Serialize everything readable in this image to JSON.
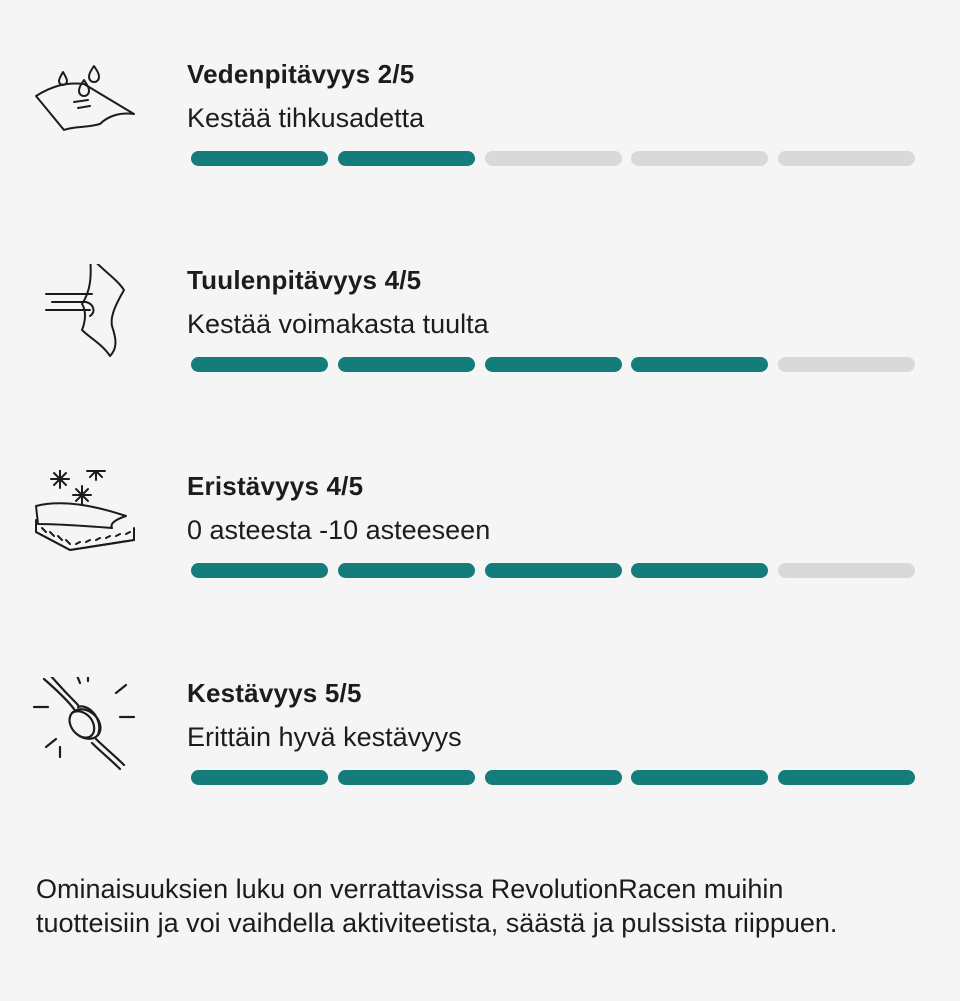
{
  "features": [
    {
      "id": "waterproof",
      "icon": "water-drops-fabric-icon",
      "title": "Vedenpitävyys 2/5",
      "subtitle": "Kestää tihkusadetta",
      "rating": 2,
      "max_rating": 5
    },
    {
      "id": "windproof",
      "icon": "wind-fabric-icon",
      "title": "Tuulenpitävyys 4/5",
      "subtitle": "Kestää voimakasta tuulta",
      "rating": 4,
      "max_rating": 5
    },
    {
      "id": "insulation",
      "icon": "snowflake-layers-icon",
      "title": "Eristävyys 4/5",
      "subtitle": "0 asteesta -10 asteeseen",
      "rating": 4,
      "max_rating": 5
    },
    {
      "id": "durability",
      "icon": "knot-rope-icon",
      "title": "Kestävyys 5/5",
      "subtitle": "Erittäin hyvä kestävyys",
      "rating": 5,
      "max_rating": 5
    }
  ],
  "footnote": {
    "line1": "Ominaisuuksien luku on verrattavissa RevolutionRacen muihin",
    "line2": "tuotteisiin ja voi vaihdella aktiviteetista, säästä ja pulssista riippuen."
  },
  "colors": {
    "filled": "#147d7b",
    "empty": "#d9d9d9",
    "background": "#f5f5f5",
    "text": "#1c1c1c"
  }
}
